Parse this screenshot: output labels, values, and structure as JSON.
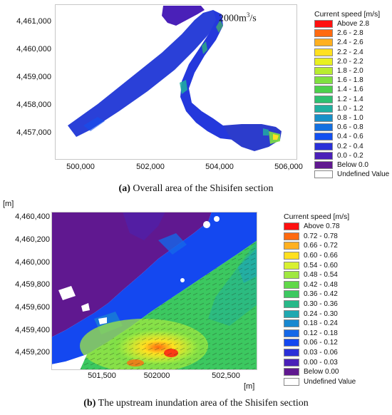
{
  "panel_a": {
    "flow_text": "2000m",
    "flow_sup": "3",
    "flow_tail": "/s",
    "y_ticks": [
      "4,461,000",
      "4,460,000",
      "4,459,000",
      "4,458,000",
      "4,457,000"
    ],
    "x_ticks": [
      "500,000",
      "502,000",
      "504,000",
      "506,000"
    ],
    "legend_title": "Current speed [m/s]",
    "legend": [
      {
        "label": "Above 2.8",
        "color": "#ff1010"
      },
      {
        "label": "2.6 - 2.8",
        "color": "#ff6a10"
      },
      {
        "label": "2.4 - 2.6",
        "color": "#ffb020"
      },
      {
        "label": "2.2 - 2.4",
        "color": "#ffe020"
      },
      {
        "label": "2.0 - 2.2",
        "color": "#e8f020"
      },
      {
        "label": "1.8 - 2.0",
        "color": "#b8ec30"
      },
      {
        "label": "1.6 - 1.8",
        "color": "#7fe040"
      },
      {
        "label": "1.4 - 1.6",
        "color": "#4cd04c"
      },
      {
        "label": "1.2 - 1.4",
        "color": "#2ec070"
      },
      {
        "label": "1.0 - 1.2",
        "color": "#20b0a0"
      },
      {
        "label": "0.8 - 1.0",
        "color": "#1890c8"
      },
      {
        "label": "0.6 - 0.8",
        "color": "#1470e0"
      },
      {
        "label": "0.4 - 0.6",
        "color": "#1450f0"
      },
      {
        "label": "0.2 - 0.4",
        "color": "#2a30d8"
      },
      {
        "label": "0.0 - 0.2",
        "color": "#4a20b8"
      },
      {
        "label": "Below 0.0",
        "color": "#601890"
      },
      {
        "label": "Undefined Value",
        "color": "#ffffff"
      }
    ],
    "caption_bold": "(a)",
    "caption_text": " Overall area of the Shisifen section"
  },
  "panel_b": {
    "unit_top": "[m]",
    "unit_bottom": "[m]",
    "y_ticks": [
      "4,460,400",
      "4,460,200",
      "4,460,000",
      "4,459,800",
      "4,459,600",
      "4,459,400",
      "4,459,200"
    ],
    "x_ticks": [
      "501,500",
      "502000",
      "502,500"
    ],
    "legend_title": "Current speed [m/s]",
    "legend": [
      {
        "label": "Above 0.78",
        "color": "#ff1010"
      },
      {
        "label": "0.72 - 0.78",
        "color": "#ff6a10"
      },
      {
        "label": "0.66 - 0.72",
        "color": "#ffb020"
      },
      {
        "label": "0.60 - 0.66",
        "color": "#ffe020"
      },
      {
        "label": "0.54 - 0.60",
        "color": "#d8f030"
      },
      {
        "label": "0.48 - 0.54",
        "color": "#a0e840"
      },
      {
        "label": "0.42 - 0.48",
        "color": "#60d848"
      },
      {
        "label": "0.36 - 0.42",
        "color": "#3cc860"
      },
      {
        "label": "0.30 - 0.36",
        "color": "#28b888"
      },
      {
        "label": "0.24 - 0.30",
        "color": "#20a8b0"
      },
      {
        "label": "0.18 - 0.24",
        "color": "#1888d0"
      },
      {
        "label": "0.12 - 0.18",
        "color": "#1468e8"
      },
      {
        "label": "0.06 - 0.12",
        "color": "#1448f0"
      },
      {
        "label": "0.03 - 0.06",
        "color": "#2a30d8"
      },
      {
        "label": "0.00 - 0.03",
        "color": "#4a20b8"
      },
      {
        "label": "Below 0.00",
        "color": "#601890"
      },
      {
        "label": "Undefined Value",
        "color": "#ffffff"
      }
    ],
    "caption_bold": "(b)",
    "caption_text": " The upstream inundation area of the Shisifen section"
  }
}
